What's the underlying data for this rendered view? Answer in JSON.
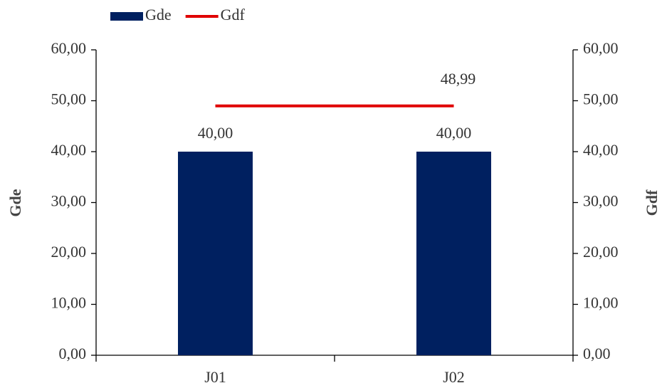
{
  "chart_data": {
    "type": "bar",
    "categories": [
      "J01",
      "J02"
    ],
    "series": [
      {
        "name": "Gde",
        "type": "bar",
        "color": "#002060",
        "values": [
          40,
          40
        ],
        "value_labels": [
          "40,00",
          "40,00"
        ]
      },
      {
        "name": "Gdf",
        "type": "line",
        "axis": "y2",
        "color": "#e00000",
        "values": [
          48.99,
          48.99
        ],
        "value_labels": [
          null,
          "48,99"
        ]
      }
    ],
    "ylabel": "Gde",
    "y2label": "Gdf",
    "ylim": [
      0,
      60
    ],
    "yticks": [
      {
        "value": 0,
        "label": "0,00"
      },
      {
        "value": 10,
        "label": "10,00"
      },
      {
        "value": 20,
        "label": "20,00"
      },
      {
        "value": 30,
        "label": "30,00"
      },
      {
        "value": 40,
        "label": "40,00"
      },
      {
        "value": 50,
        "label": "50,00"
      },
      {
        "value": 60,
        "label": "60,00"
      }
    ],
    "y2lim": [
      0,
      60
    ],
    "y2ticks": [
      {
        "value": 0,
        "label": "0,00"
      },
      {
        "value": 10,
        "label": "10,00"
      },
      {
        "value": 20,
        "label": "20,00"
      },
      {
        "value": 30,
        "label": "30,00"
      },
      {
        "value": 40,
        "label": "40,00"
      },
      {
        "value": 50,
        "label": "50,00"
      },
      {
        "value": 60,
        "label": "60,00"
      }
    ],
    "legend": "top-left",
    "grid": false
  }
}
